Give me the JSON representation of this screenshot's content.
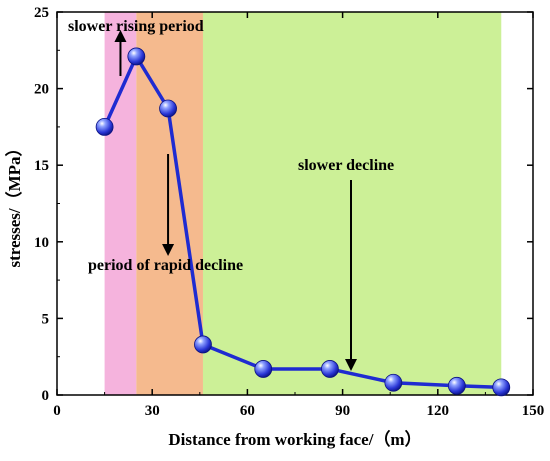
{
  "chart_data": {
    "type": "line",
    "title": "",
    "xlabel": "Distance from working face/（m）",
    "ylabel": "stresses/（MPa）",
    "xlim": [
      0,
      150
    ],
    "ylim": [
      0,
      25
    ],
    "xticks": [
      0,
      30,
      60,
      90,
      120,
      150
    ],
    "yticks": [
      0,
      5,
      10,
      15,
      20,
      25
    ],
    "grid": false,
    "legend": "none",
    "series": [
      {
        "x": [
          15,
          25,
          35,
          46,
          65,
          86,
          106,
          126,
          140
        ],
        "y": [
          17.5,
          22.1,
          18.7,
          3.3,
          1.7,
          1.7,
          0.8,
          0.6,
          0.5
        ],
        "color": "#1f2bd1",
        "marker": "sphere"
      }
    ],
    "regions": [
      {
        "x": [
          15,
          25
        ],
        "color": "#f5b3dd"
      },
      {
        "x": [
          25,
          46
        ],
        "color": "#f5ba8e"
      },
      {
        "x": [
          46,
          140
        ],
        "color": "#ccf097"
      }
    ],
    "annotations": [
      {
        "text": "slower rising period",
        "arrow": "up",
        "at": [
          20,
          20.2
        ]
      },
      {
        "text": "period of rapid decline",
        "arrow": "down",
        "at": [
          35,
          9.6
        ]
      },
      {
        "text": "slower decline",
        "arrow": "down",
        "at": [
          93,
          2.0
        ]
      }
    ]
  }
}
